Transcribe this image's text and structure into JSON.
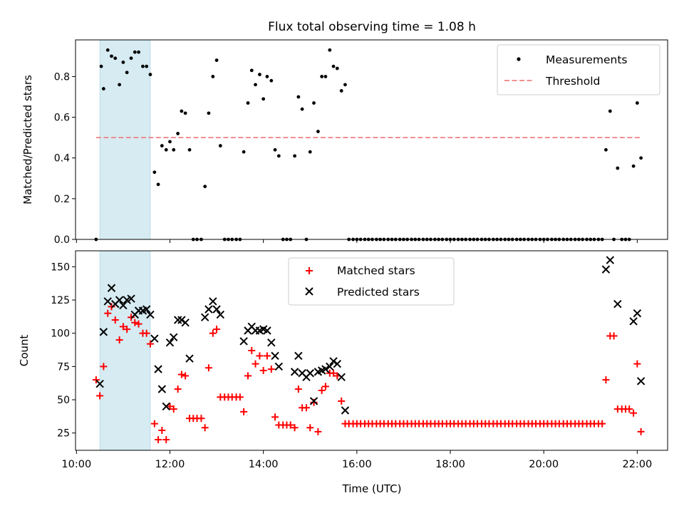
{
  "figure": {
    "title": "Flux total observing time = 1.08 h"
  },
  "chart_data": [
    {
      "type": "scatter",
      "title": "Flux total observing time = 1.08 h",
      "xlabel": "",
      "ylabel": "Matched/Predicted stars",
      "x_unit": "hours (UTC)",
      "xlim": [
        9.98,
        22.65
      ],
      "ylim": [
        0,
        0.98
      ],
      "yticks": [
        0.0,
        0.2,
        0.4,
        0.6,
        0.8
      ],
      "ytick_labels": [
        "0.0",
        "0.2",
        "0.4",
        "0.6",
        "0.8"
      ],
      "grid": false,
      "legend": "top-right",
      "shaded_span": {
        "x": [
          10.5,
          11.58
        ],
        "color": "#add8e6"
      },
      "threshold": {
        "name": "Threshold",
        "y": 0.5,
        "x": [
          10.42,
          22.08
        ],
        "color": "#f08080",
        "style": "dashed"
      },
      "series": [
        {
          "name": "Measurements",
          "marker": "dot",
          "color": "#000000",
          "x": [
            10.42,
            10.53,
            10.58,
            10.67,
            10.75,
            10.83,
            10.92,
            11.0,
            11.08,
            11.17,
            11.25,
            11.33,
            11.42,
            11.5,
            11.58,
            11.67,
            11.75,
            11.83,
            11.92,
            12.0,
            12.08,
            12.17,
            12.25,
            12.33,
            12.42,
            12.5,
            12.58,
            12.67,
            12.75,
            12.83,
            12.92,
            13.0,
            13.08,
            13.17,
            13.25,
            13.33,
            13.42,
            13.5,
            13.58,
            13.67,
            13.75,
            13.83,
            13.92,
            14.0,
            14.08,
            14.17,
            14.25,
            14.33,
            14.42,
            14.5,
            14.58,
            14.67,
            14.75,
            14.83,
            14.92,
            15.0,
            15.08,
            15.17,
            15.25,
            15.33,
            15.42,
            15.5,
            15.58,
            15.67,
            15.75,
            15.83,
            15.92,
            16.0,
            16.08,
            16.17,
            16.25,
            16.33,
            16.42,
            16.5,
            16.58,
            16.67,
            16.75,
            16.83,
            16.92,
            17.0,
            17.08,
            17.17,
            17.25,
            17.33,
            17.42,
            17.5,
            17.58,
            17.67,
            17.75,
            17.83,
            17.92,
            18.0,
            18.08,
            18.17,
            18.25,
            18.33,
            18.42,
            18.5,
            18.58,
            18.67,
            18.75,
            18.83,
            18.92,
            19.0,
            19.08,
            19.17,
            19.25,
            19.33,
            19.42,
            19.5,
            19.58,
            19.67,
            19.75,
            19.83,
            19.92,
            20.0,
            20.08,
            20.17,
            20.25,
            20.33,
            20.42,
            20.5,
            20.58,
            20.67,
            20.75,
            20.83,
            20.92,
            21.0,
            21.08,
            21.17,
            21.25,
            21.33,
            21.42,
            21.5,
            21.58,
            21.67,
            21.75,
            21.83,
            21.92,
            22.0,
            22.08
          ],
          "y": [
            0.0,
            0.85,
            0.74,
            0.93,
            0.9,
            0.89,
            0.76,
            0.87,
            0.82,
            0.89,
            0.92,
            0.92,
            0.85,
            0.85,
            0.81,
            0.33,
            0.27,
            0.46,
            0.44,
            0.48,
            0.44,
            0.52,
            0.63,
            0.62,
            0.44,
            0.0,
            0.0,
            0.0,
            0.26,
            0.62,
            0.8,
            0.88,
            0.46,
            0.0,
            0.0,
            0.0,
            0.0,
            0.0,
            0.43,
            0.67,
            0.83,
            0.76,
            0.81,
            0.69,
            0.8,
            0.78,
            0.44,
            0.41,
            0.0,
            0.0,
            0.0,
            0.41,
            0.7,
            0.64,
            0.0,
            0.43,
            0.67,
            0.53,
            0.8,
            0.8,
            0.93,
            0.85,
            0.84,
            0.73,
            0.76,
            0.0,
            0.0,
            0.0,
            0.0,
            0.0,
            0.0,
            0.0,
            0.0,
            0.0,
            0.0,
            0.0,
            0.0,
            0.0,
            0.0,
            0.0,
            0.0,
            0.0,
            0.0,
            0.0,
            0.0,
            0.0,
            0.0,
            0.0,
            0.0,
            0.0,
            0.0,
            0.0,
            0.0,
            0.0,
            0.0,
            0.0,
            0.0,
            0.0,
            0.0,
            0.0,
            0.0,
            0.0,
            0.0,
            0.0,
            0.0,
            0.0,
            0.0,
            0.0,
            0.0,
            0.0,
            0.0,
            0.0,
            0.0,
            0.0,
            0.0,
            0.0,
            0.0,
            0.0,
            0.0,
            0.0,
            0.0,
            0.0,
            0.0,
            0.0,
            0.0,
            0.0,
            0.0,
            0.0,
            0.0,
            0.0,
            0.0,
            0.44,
            0.63,
            0.0,
            0.35,
            0.0,
            0.0,
            0.0,
            0.36,
            0.67,
            0.4
          ]
        }
      ]
    },
    {
      "type": "scatter",
      "title": "",
      "xlabel": "Time (UTC)",
      "ylabel": "Count",
      "x_unit": "hours (UTC)",
      "xlim": [
        9.98,
        22.65
      ],
      "ylim": [
        12,
        162
      ],
      "xticks": [
        10,
        12,
        14,
        16,
        18,
        20,
        22
      ],
      "xtick_labels": [
        "10:00",
        "12:00",
        "14:00",
        "16:00",
        "18:00",
        "20:00",
        "22:00"
      ],
      "yticks": [
        25,
        50,
        75,
        100,
        125,
        150
      ],
      "ytick_labels": [
        "25",
        "50",
        "75",
        "100",
        "125",
        "150"
      ],
      "grid": false,
      "legend": "top-center",
      "shaded_span": {
        "x": [
          10.5,
          11.58
        ],
        "color": "#add8e6"
      },
      "series": [
        {
          "name": "Matched stars",
          "marker": "plus",
          "color": "#ff0000",
          "x": [
            10.42,
            10.5,
            10.58,
            10.67,
            10.75,
            10.83,
            10.92,
            11.0,
            11.08,
            11.17,
            11.25,
            11.33,
            11.42,
            11.5,
            11.58,
            11.67,
            11.75,
            11.83,
            11.92,
            12.0,
            12.08,
            12.17,
            12.25,
            12.33,
            12.42,
            12.5,
            12.58,
            12.67,
            12.75,
            12.83,
            12.92,
            13.0,
            13.08,
            13.17,
            13.25,
            13.33,
            13.42,
            13.5,
            13.58,
            13.67,
            13.75,
            13.83,
            13.92,
            14.0,
            14.08,
            14.17,
            14.25,
            14.33,
            14.42,
            14.5,
            14.58,
            14.67,
            14.75,
            14.83,
            14.92,
            15.0,
            15.08,
            15.17,
            15.25,
            15.33,
            15.42,
            15.5,
            15.58,
            15.67,
            15.75,
            15.83,
            15.92,
            16.0,
            16.08,
            16.17,
            16.25,
            16.33,
            16.42,
            16.5,
            16.58,
            16.67,
            16.75,
            16.83,
            16.92,
            17.0,
            17.08,
            17.17,
            17.25,
            17.33,
            17.42,
            17.5,
            17.58,
            17.67,
            17.75,
            17.83,
            17.92,
            18.0,
            18.08,
            18.17,
            18.25,
            18.33,
            18.42,
            18.5,
            18.58,
            18.67,
            18.75,
            18.83,
            18.92,
            19.0,
            19.08,
            19.17,
            19.25,
            19.33,
            19.42,
            19.5,
            19.58,
            19.67,
            19.75,
            19.83,
            19.92,
            20.0,
            20.08,
            20.17,
            20.25,
            20.33,
            20.42,
            20.5,
            20.58,
            20.67,
            20.75,
            20.83,
            20.92,
            21.0,
            21.08,
            21.17,
            21.25,
            21.33,
            21.42,
            21.5,
            21.58,
            21.67,
            21.75,
            21.83,
            21.92,
            22.0,
            22.08
          ],
          "y": [
            65,
            53,
            75,
            115,
            120,
            110,
            95,
            105,
            103,
            112,
            108,
            107,
            100,
            100,
            92,
            32,
            20,
            27,
            20,
            45,
            43,
            58,
            69,
            68,
            36,
            36,
            36,
            36,
            29,
            74,
            100,
            103,
            52,
            52,
            52,
            52,
            52,
            52,
            41,
            68,
            87,
            77,
            83,
            72,
            83,
            73,
            37,
            31,
            31,
            31,
            31,
            29,
            58,
            44,
            44,
            29,
            48,
            26,
            57,
            60,
            70,
            70,
            68,
            49,
            32,
            32,
            32,
            32,
            32,
            32,
            32,
            32,
            32,
            32,
            32,
            32,
            32,
            32,
            32,
            32,
            32,
            32,
            32,
            32,
            32,
            32,
            32,
            32,
            32,
            32,
            32,
            32,
            32,
            32,
            32,
            32,
            32,
            32,
            32,
            32,
            32,
            32,
            32,
            32,
            32,
            32,
            32,
            32,
            32,
            32,
            32,
            32,
            32,
            32,
            32,
            32,
            32,
            32,
            32,
            32,
            32,
            32,
            32,
            32,
            32,
            32,
            32,
            32,
            32,
            32,
            32,
            65,
            98,
            98,
            43,
            43,
            43,
            43,
            40,
            77,
            26
          ]
        },
        {
          "name": "Predicted stars",
          "marker": "x",
          "color": "#000000",
          "x": [
            10.5,
            10.58,
            10.67,
            10.75,
            10.83,
            10.92,
            11.0,
            11.08,
            11.17,
            11.25,
            11.33,
            11.42,
            11.5,
            11.58,
            11.67,
            11.75,
            11.83,
            11.92,
            12.0,
            12.08,
            12.17,
            12.25,
            12.33,
            12.42,
            12.75,
            12.83,
            12.92,
            13.0,
            13.08,
            13.58,
            13.67,
            13.75,
            13.83,
            13.92,
            14.0,
            14.08,
            14.17,
            14.25,
            14.33,
            14.67,
            14.75,
            14.83,
            14.92,
            15.0,
            15.08,
            15.17,
            15.25,
            15.33,
            15.42,
            15.5,
            15.58,
            15.67,
            15.75,
            21.33,
            21.42,
            21.58,
            21.92,
            22.0,
            22.08
          ],
          "y": [
            62,
            101,
            124,
            134,
            122,
            125,
            121,
            125,
            126,
            114,
            117,
            117,
            118,
            114,
            96,
            73,
            58,
            45,
            93,
            97,
            110,
            110,
            108,
            81,
            112,
            118,
            124,
            118,
            114,
            94,
            102,
            105,
            102,
            102,
            103,
            102,
            93,
            83,
            75,
            71,
            83,
            70,
            67,
            70,
            49,
            71,
            72,
            73,
            75,
            79,
            77,
            67,
            42,
            148,
            155,
            122,
            109,
            115,
            64
          ]
        }
      ]
    }
  ]
}
